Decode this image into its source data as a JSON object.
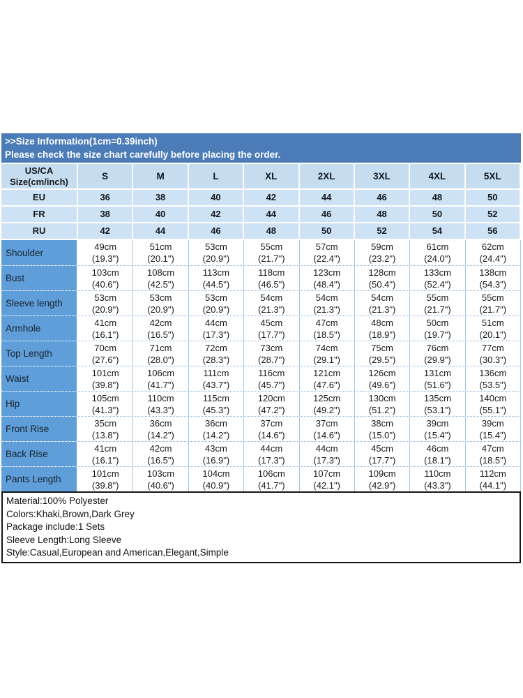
{
  "banner": {
    "title": ">>Size Information(1cm=0.39inch)",
    "subtitle": "Please check the size chart carefully before placing the order."
  },
  "size_table": {
    "corner_header": [
      "US/CA",
      "Size(cm/inch)"
    ],
    "size_columns": [
      "S",
      "M",
      "L",
      "XL",
      "2XL",
      "3XL",
      "4XL",
      "5XL"
    ],
    "size_systems": [
      {
        "label": "EU",
        "values": [
          "36",
          "38",
          "40",
          "42",
          "44",
          "46",
          "48",
          "50"
        ]
      },
      {
        "label": "FR",
        "values": [
          "38",
          "40",
          "42",
          "44",
          "46",
          "48",
          "50",
          "52"
        ]
      },
      {
        "label": "RU",
        "values": [
          "42",
          "44",
          "46",
          "48",
          "50",
          "52",
          "54",
          "56"
        ]
      }
    ],
    "measurements": [
      {
        "label": "Shoulder",
        "cells": [
          [
            "49cm",
            "(19.3\")"
          ],
          [
            "51cm",
            "(20.1\")"
          ],
          [
            "53cm",
            "(20.9\")"
          ],
          [
            "55cm",
            "(21.7\")"
          ],
          [
            "57cm",
            "(22.4\")"
          ],
          [
            "59cm",
            "(23.2\")"
          ],
          [
            "61cm",
            "(24.0\")"
          ],
          [
            "62cm",
            "(24.4\")"
          ]
        ]
      },
      {
        "label": "Bust",
        "cells": [
          [
            "103cm",
            "(40.6\")"
          ],
          [
            "108cm",
            "(42.5\")"
          ],
          [
            "113cm",
            "(44.5\")"
          ],
          [
            "118cm",
            "(46.5\")"
          ],
          [
            "123cm",
            "(48.4\")"
          ],
          [
            "128cm",
            "(50.4\")"
          ],
          [
            "133cm",
            "(52.4\")"
          ],
          [
            "138cm",
            "(54.3\")"
          ]
        ]
      },
      {
        "label": "Sleeve length",
        "cells": [
          [
            "53cm",
            "(20.9\")"
          ],
          [
            "53cm",
            "(20.9\")"
          ],
          [
            "53cm",
            "(20.9\")"
          ],
          [
            "54cm",
            "(21.3\")"
          ],
          [
            "54cm",
            "(21.3\")"
          ],
          [
            "54cm",
            "(21.3\")"
          ],
          [
            "55cm",
            "(21.7\")"
          ],
          [
            "55cm",
            "(21.7\")"
          ]
        ]
      },
      {
        "label": "Armhole",
        "cells": [
          [
            "41cm",
            "(16.1\")"
          ],
          [
            "42cm",
            "(16.5\")"
          ],
          [
            "44cm",
            "(17.3\")"
          ],
          [
            "45cm",
            "(17.7\")"
          ],
          [
            "47cm",
            "(18.5\")"
          ],
          [
            "48cm",
            "(18.9\")"
          ],
          [
            "50cm",
            "(19.7\")"
          ],
          [
            "51cm",
            "(20.1\")"
          ]
        ]
      },
      {
        "label": "Top Length",
        "cells": [
          [
            "70cm",
            "(27.6\")"
          ],
          [
            "71cm",
            "(28.0\")"
          ],
          [
            "72cm",
            "(28.3\")"
          ],
          [
            "73cm",
            "(28.7\")"
          ],
          [
            "74cm",
            "(29.1\")"
          ],
          [
            "75cm",
            "(29.5\")"
          ],
          [
            "76cm",
            "(29.9\")"
          ],
          [
            "77cm",
            "(30.3\")"
          ]
        ]
      },
      {
        "label": "Waist",
        "cells": [
          [
            "101cm",
            "(39.8\")"
          ],
          [
            "106cm",
            "(41.7\")"
          ],
          [
            "111cm",
            "(43.7\")"
          ],
          [
            "116cm",
            "(45.7\")"
          ],
          [
            "121cm",
            "(47.6\")"
          ],
          [
            "126cm",
            "(49.6\")"
          ],
          [
            "131cm",
            "(51.6\")"
          ],
          [
            "136cm",
            "(53.5\")"
          ]
        ]
      },
      {
        "label": "Hip",
        "cells": [
          [
            "105cm",
            "(41.3\")"
          ],
          [
            "110cm",
            "(43.3\")"
          ],
          [
            "115cm",
            "(45.3\")"
          ],
          [
            "120cm",
            "(47.2\")"
          ],
          [
            "125cm",
            "(49.2\")"
          ],
          [
            "130cm",
            "(51.2\")"
          ],
          [
            "135cm",
            "(53.1\")"
          ],
          [
            "140cm",
            "(55.1\")"
          ]
        ]
      },
      {
        "label": "Front Rise",
        "cells": [
          [
            "35cm",
            "(13.8\")"
          ],
          [
            "36cm",
            "(14.2\")"
          ],
          [
            "36cm",
            "(14.2\")"
          ],
          [
            "37cm",
            "(14.6\")"
          ],
          [
            "37cm",
            "(14.6\")"
          ],
          [
            "38cm",
            "(15.0\")"
          ],
          [
            "39cm",
            "(15.4\")"
          ],
          [
            "39cm",
            "(15.4\")"
          ]
        ]
      },
      {
        "label": "Back Rise",
        "cells": [
          [
            "41cm",
            "(16.1\")"
          ],
          [
            "42cm",
            "(16.5\")"
          ],
          [
            "43cm",
            "(16.9\")"
          ],
          [
            "44cm",
            "(17.3\")"
          ],
          [
            "44cm",
            "(17.3\")"
          ],
          [
            "45cm",
            "(17.7\")"
          ],
          [
            "46cm",
            "(18.1\")"
          ],
          [
            "47cm",
            "(18.5\")"
          ]
        ]
      },
      {
        "label": "Pants Length",
        "cells": [
          [
            "101cm",
            "(39.8\")"
          ],
          [
            "103cm",
            "(40.6\")"
          ],
          [
            "104cm",
            "(40.9\")"
          ],
          [
            "106cm",
            "(41.7\")"
          ],
          [
            "107cm",
            "(42.1\")"
          ],
          [
            "109cm",
            "(42.9\")"
          ],
          [
            "110cm",
            "(43.3\")"
          ],
          [
            "112cm",
            "(44.1\")"
          ]
        ]
      }
    ]
  },
  "product_info": {
    "lines": [
      "Material:100% Polyester",
      "Colors:Khaki,Brown,Dark Grey",
      "Package include:1 Sets",
      "Sleeve Length:Long Sleeve",
      "Style:Casual,European and American,Elegant,Simple"
    ]
  },
  "colors": {
    "banner_bg": "#4b7cb8",
    "banner_text": "#ffffff",
    "header_row_bg": "#c6dcef",
    "system_row_bg": "#cde2f4",
    "label_column_bg": "#5f9ed9",
    "cell_border": "#a3c6e6",
    "info_box_border": "#141414"
  }
}
